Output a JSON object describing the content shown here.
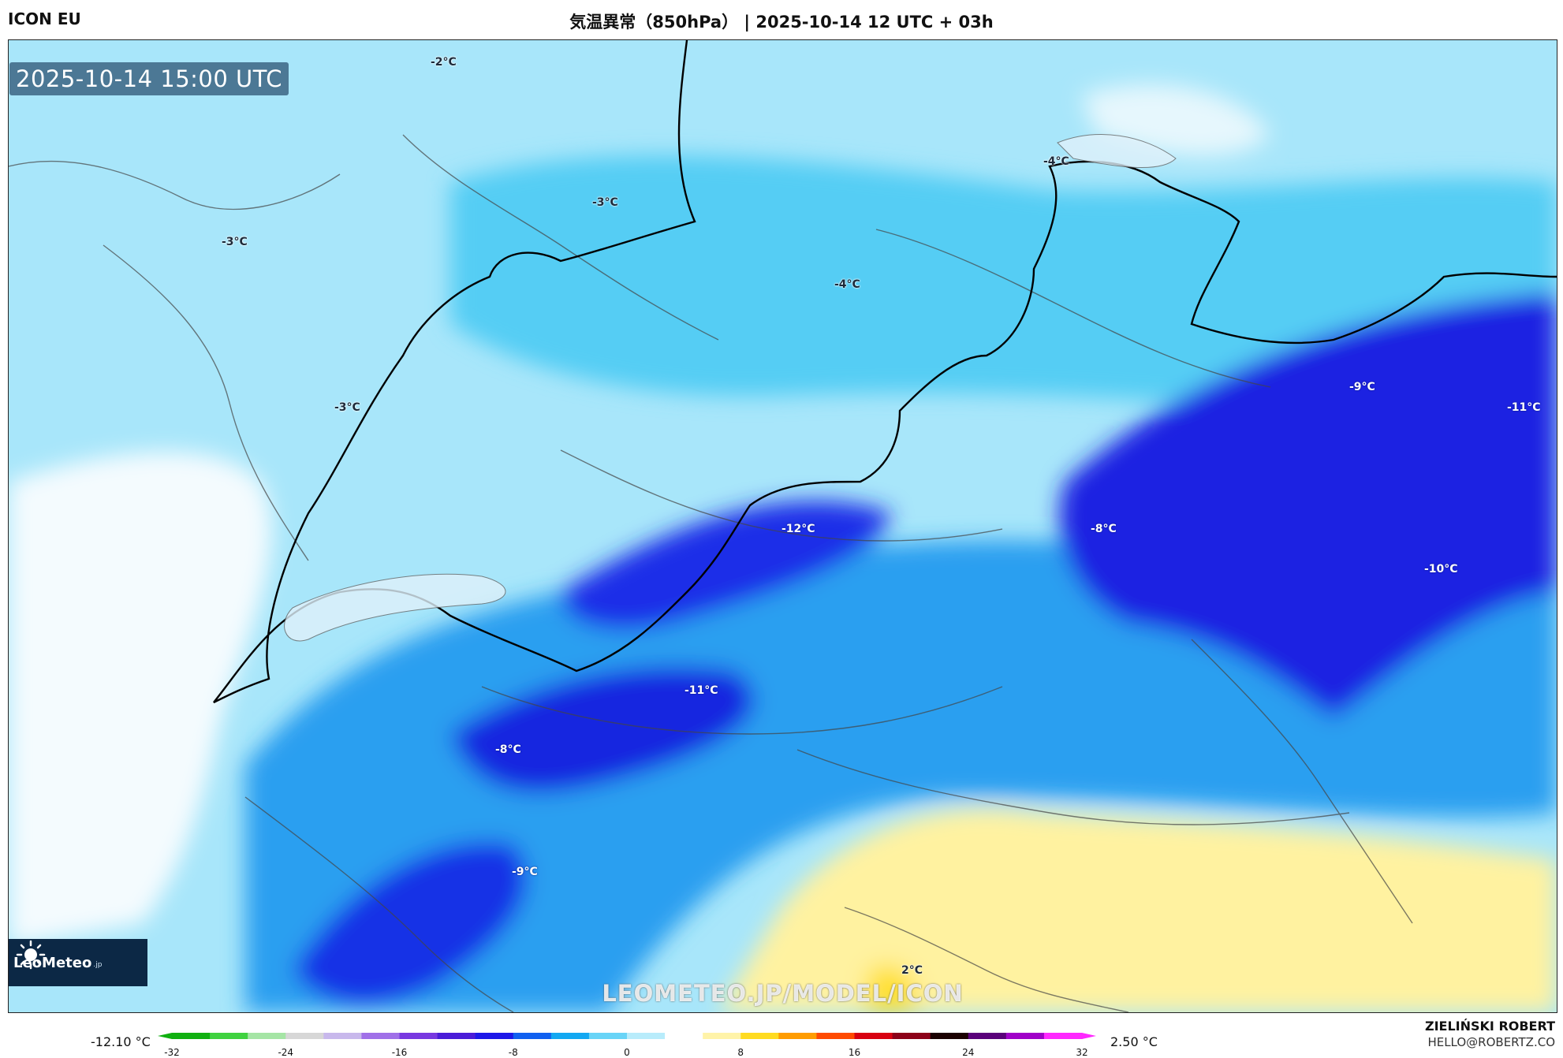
{
  "header": {
    "model": "ICON EU",
    "title": "気温異常（850hPa） | 2025-10-14 12 UTC + 03h"
  },
  "map": {
    "timestamp": "2025-10-14 15:00 UTC",
    "watermark": "LEOMETEO.JP/MODEL/ICON",
    "logo_text": "LeoMeteo",
    "logo_tld": ".jp",
    "contour_labels": [
      "-2°C",
      "-3°C",
      "-3°C",
      "-4°C",
      "-4°C",
      "-3°C",
      "-12°C",
      "-8°C",
      "-9°C",
      "-11°C",
      "-10°C",
      "-11°C",
      "-8°C",
      "-9°C",
      "2°C"
    ]
  },
  "legend": {
    "min_value": "-12.10 °C",
    "max_value": "2.50 °C",
    "ticks": [
      "-32",
      "-24",
      "-16",
      "-8",
      "0",
      "8",
      "16",
      "24",
      "32"
    ],
    "colors": [
      "#10b010",
      "#3fd23f",
      "#a5e5a5",
      "#d7d7d7",
      "#c8b8ec",
      "#a070e8",
      "#7838e0",
      "#4a1cd8",
      "#1d18e8",
      "#1060f0",
      "#12a8f2",
      "#68d4f7",
      "#b8ecfb",
      "#ffffff",
      "#fff3a8",
      "#ffdb20",
      "#ff9c00",
      "#ff4a00",
      "#d80010",
      "#8c0018",
      "#1a0000",
      "#5a007a",
      "#a000c8",
      "#ff28ff"
    ]
  },
  "credit": {
    "author": "ZIELIŃSKI ROBERT",
    "email": "HELLO@ROBERTZ.CO"
  }
}
